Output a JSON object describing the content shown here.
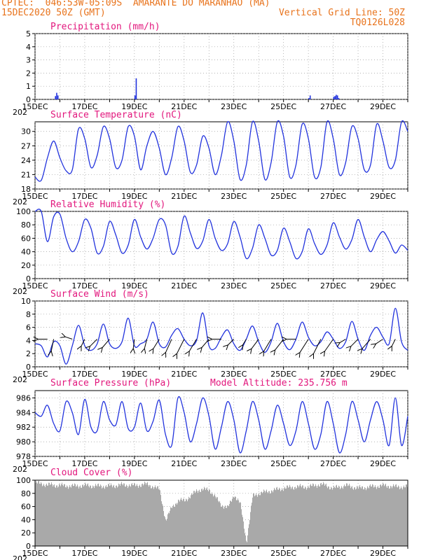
{
  "header": {
    "line1_left": "CPTEC:  046:53W-05:09S  AMARANTE DO MARANHAO (MA)",
    "line2_left": "15DEC2020 50Z (GMT)",
    "line2_right": "Vertical Grid Line: 50Z",
    "line3_right": "TQ0126L028"
  },
  "colors": {
    "line": "#2233dd",
    "bar": "#2233dd",
    "cloud": "#a9a9a9",
    "title": "#e2177d",
    "header": "#e8731c",
    "grid": "#9a9a9a"
  },
  "x_tick_labels": [
    "15DEC",
    "17DEC",
    "19DEC",
    "21DEC",
    "23DEC",
    "25DEC",
    "27DEC",
    "29DEC"
  ],
  "clipped_year_label": "202",
  "chart_data": [
    {
      "type": "bar",
      "title": "Precipitation (mm/h)",
      "ylim": [
        0,
        5
      ],
      "yticks": [
        0,
        1,
        2,
        3,
        4,
        5
      ],
      "x_unit": "day offset from 15DEC",
      "x": [
        0.8,
        0.85,
        0.9,
        4.0,
        4.05,
        11.0,
        11.05,
        12.0,
        12.05,
        12.1,
        12.15,
        12.2
      ],
      "values": [
        0.25,
        0.5,
        0.3,
        0.3,
        1.6,
        0.1,
        0.3,
        0.2,
        0.25,
        0.35,
        0.3,
        0.1
      ]
    },
    {
      "type": "line",
      "title": "Surface Temperature (nC)",
      "ylim": [
        18,
        32
      ],
      "yticks": [
        18,
        21,
        24,
        27,
        30
      ],
      "x": [
        0,
        0.25,
        0.5,
        0.75,
        1.0,
        1.25,
        1.5,
        1.75,
        2.0,
        2.25,
        2.5,
        2.75,
        3.0,
        3.25,
        3.5,
        3.75,
        4.0,
        4.25,
        4.5,
        4.75,
        5.0,
        5.25,
        5.5,
        5.75,
        6.0,
        6.25,
        6.5,
        6.75,
        7.0,
        7.25,
        7.5,
        7.75,
        8.0,
        8.25,
        8.5,
        8.75,
        9.0,
        9.25,
        9.5,
        9.75,
        10.0,
        10.25,
        10.5,
        10.75,
        11.0,
        11.25,
        11.5,
        11.75,
        12.0,
        12.25,
        12.5,
        12.75,
        13.0,
        13.25,
        13.5,
        13.75,
        14.0,
        14.25,
        14.5,
        14.75,
        15.0
      ],
      "values": [
        20.5,
        19.8,
        24.5,
        28,
        24.5,
        21.8,
        22,
        30.5,
        28.5,
        22.5,
        25,
        31,
        28.5,
        22.5,
        24,
        31,
        29,
        22,
        27,
        30,
        26.5,
        21,
        24.5,
        31,
        28,
        21.5,
        23,
        29,
        26.5,
        21,
        25,
        32,
        28,
        20,
        23,
        32,
        28,
        20,
        23.5,
        32,
        29,
        20.5,
        23,
        31.5,
        28.5,
        20.5,
        22.5,
        32,
        28.5,
        21,
        23.5,
        31,
        28.5,
        22,
        23,
        31.5,
        28,
        22.5,
        24,
        32,
        30
      ]
    },
    {
      "type": "line",
      "title": "Relative Humidity (%)",
      "ylim": [
        0,
        100
      ],
      "yticks": [
        0,
        20,
        40,
        60,
        80,
        100
      ],
      "x": [
        0,
        0.25,
        0.5,
        0.75,
        1.0,
        1.25,
        1.5,
        1.75,
        2.0,
        2.25,
        2.5,
        2.75,
        3.0,
        3.25,
        3.5,
        3.75,
        4.0,
        4.25,
        4.5,
        4.75,
        5.0,
        5.25,
        5.5,
        5.75,
        6.0,
        6.25,
        6.5,
        6.75,
        7.0,
        7.25,
        7.5,
        7.75,
        8.0,
        8.25,
        8.5,
        8.75,
        9.0,
        9.25,
        9.5,
        9.75,
        10.0,
        10.25,
        10.5,
        10.75,
        11.0,
        11.25,
        11.5,
        11.75,
        12.0,
        12.25,
        12.5,
        12.75,
        13.0,
        13.25,
        13.5,
        13.75,
        14.0,
        14.25,
        14.5,
        14.75,
        15.0
      ],
      "values": [
        100,
        100,
        55,
        92,
        96,
        60,
        40,
        55,
        88,
        75,
        38,
        48,
        85,
        65,
        38,
        50,
        88,
        62,
        44,
        60,
        88,
        80,
        38,
        48,
        93,
        68,
        45,
        56,
        88,
        60,
        42,
        52,
        85,
        62,
        30,
        45,
        80,
        60,
        35,
        42,
        75,
        55,
        30,
        40,
        74,
        52,
        36,
        50,
        83,
        62,
        44,
        58,
        88,
        62,
        40,
        58,
        70,
        56,
        38,
        50,
        42
      ]
    },
    {
      "type": "line",
      "title": "Surface Wind (m/s)",
      "ylim": [
        0,
        10
      ],
      "yticks": [
        0,
        2,
        4,
        6,
        8,
        10
      ],
      "x": [
        0,
        0.25,
        0.5,
        0.75,
        1.0,
        1.25,
        1.5,
        1.75,
        2.0,
        2.25,
        2.5,
        2.75,
        3.0,
        3.25,
        3.5,
        3.75,
        4.0,
        4.25,
        4.5,
        4.75,
        5.0,
        5.25,
        5.5,
        5.75,
        6.0,
        6.25,
        6.5,
        6.75,
        7.0,
        7.25,
        7.5,
        7.75,
        8.0,
        8.25,
        8.5,
        8.75,
        9.0,
        9.25,
        9.5,
        9.75,
        10.0,
        10.25,
        10.5,
        10.75,
        11.0,
        11.25,
        11.5,
        11.75,
        12.0,
        12.25,
        12.5,
        12.75,
        13.0,
        13.25,
        13.5,
        13.75,
        14.0,
        14.25,
        14.5,
        14.75,
        15.0
      ],
      "values": [
        3.5,
        3.2,
        1.5,
        3.8,
        3.2,
        0.4,
        3.2,
        6.3,
        3.2,
        2.5,
        3.5,
        6.5,
        3.5,
        2.8,
        3.8,
        7.4,
        3.2,
        3.5,
        4.2,
        6.8,
        3.5,
        3,
        4.8,
        5.8,
        4.2,
        3.2,
        4,
        8.2,
        3.2,
        2.8,
        4.5,
        5.6,
        3.5,
        2.5,
        4.2,
        6.2,
        3.8,
        2.2,
        3.8,
        6.6,
        3.8,
        2.6,
        4.2,
        6.8,
        4.5,
        3.2,
        3.8,
        5.3,
        4.2,
        2.8,
        3.8,
        6.9,
        4.2,
        2.5,
        4.8,
        6.0,
        4.5,
        3.5,
        8.9,
        3.8,
        2.5
      ],
      "vectors": [
        {
          "x": 0.5,
          "dx": 0.8,
          "dy": 0
        },
        {
          "x": 0.75,
          "dx": 0.2,
          "dy": -1
        },
        {
          "x": 1.5,
          "dx": 0.6,
          "dy": 0.2
        },
        {
          "x": 2.0,
          "dx": 0.3,
          "dy": -0.6
        },
        {
          "x": 2.5,
          "dx": 0.6,
          "dy": -0.6
        },
        {
          "x": 3.0,
          "dx": 0.6,
          "dy": -0.7
        },
        {
          "x": 4.0,
          "dx": 0.1,
          "dy": -0.8
        },
        {
          "x": 4.5,
          "dx": 0.2,
          "dy": -0.8
        },
        {
          "x": 5.0,
          "dx": 0.5,
          "dy": -0.8
        },
        {
          "x": 5.5,
          "dx": 0.5,
          "dy": -1.1
        },
        {
          "x": 6.0,
          "dx": 0.6,
          "dy": -1.2
        },
        {
          "x": 6.5,
          "dx": 0.6,
          "dy": -1.0
        },
        {
          "x": 7.0,
          "dx": 0.6,
          "dy": -0.7
        },
        {
          "x": 7.5,
          "dx": 0.8,
          "dy": 0
        },
        {
          "x": 8.0,
          "dx": 0.5,
          "dy": -0.5
        },
        {
          "x": 8.5,
          "dx": 0.3,
          "dy": -0.5
        },
        {
          "x": 9.0,
          "dx": 0.6,
          "dy": -0.8
        },
        {
          "x": 9.5,
          "dx": 0.6,
          "dy": -1.0
        },
        {
          "x": 10.0,
          "dx": 0.7,
          "dy": -0.9
        },
        {
          "x": 10.5,
          "dx": 0.8,
          "dy": 0
        },
        {
          "x": 11.0,
          "dx": 0.7,
          "dy": -1.1
        },
        {
          "x": 11.5,
          "dx": 0.6,
          "dy": -1.2
        },
        {
          "x": 12.0,
          "dx": 0.7,
          "dy": -1.0
        },
        {
          "x": 12.5,
          "dx": 0.5,
          "dy": -0.3
        },
        {
          "x": 13.0,
          "dx": 0.6,
          "dy": -0.6
        },
        {
          "x": 13.5,
          "dx": 0.7,
          "dy": -0.8
        },
        {
          "x": 14.0,
          "dx": 0.6,
          "dy": -0.4
        },
        {
          "x": 14.5,
          "dx": 0.3,
          "dy": -0.6
        }
      ]
    },
    {
      "type": "line",
      "title": "Surface Pressure (hPa)",
      "annotation": "Model Altitude: 235.756 m",
      "ylim": [
        978,
        987
      ],
      "yticks": [
        978,
        980,
        982,
        984,
        986
      ],
      "x": [
        0,
        0.25,
        0.5,
        0.75,
        1.0,
        1.25,
        1.5,
        1.75,
        2.0,
        2.25,
        2.5,
        2.75,
        3.0,
        3.25,
        3.5,
        3.75,
        4.0,
        4.25,
        4.5,
        4.75,
        5.0,
        5.25,
        5.5,
        5.75,
        6.0,
        6.25,
        6.5,
        6.75,
        7.0,
        7.25,
        7.5,
        7.75,
        8.0,
        8.25,
        8.5,
        8.75,
        9.0,
        9.25,
        9.5,
        9.75,
        10.0,
        10.25,
        10.5,
        10.75,
        11.0,
        11.25,
        11.5,
        11.75,
        12.0,
        12.25,
        12.5,
        12.75,
        13.0,
        13.25,
        13.5,
        13.75,
        14.0,
        14.25,
        14.5,
        14.75,
        15.0
      ],
      "values": [
        984,
        983.5,
        985,
        982.5,
        981.5,
        985.5,
        984,
        981,
        985.8,
        982,
        981.5,
        985.5,
        983,
        982.3,
        985.5,
        981.8,
        982,
        985.3,
        981.5,
        982.8,
        985.7,
        981,
        979.5,
        986,
        984,
        980,
        982.5,
        986,
        983.5,
        979,
        982,
        985.5,
        983,
        978.5,
        981.5,
        985.5,
        983,
        979,
        981.5,
        985,
        982.5,
        979.5,
        981.5,
        985.5,
        982.5,
        979,
        981,
        985.5,
        982.5,
        978.5,
        981,
        985.5,
        983,
        980,
        983,
        985.5,
        983,
        979.5,
        986,
        979.5,
        983.5
      ]
    },
    {
      "type": "bar",
      "title": "Cloud Cover (%)",
      "ylim": [
        0,
        100
      ],
      "yticks": [
        0,
        20,
        40,
        60,
        80,
        100
      ],
      "x": [
        0,
        0.5,
        1.0,
        1.5,
        2.0,
        2.5,
        3.0,
        3.5,
        4.0,
        4.5,
        5.0,
        5.25,
        5.5,
        5.75,
        6.0,
        6.25,
        6.5,
        7.0,
        7.5,
        7.75,
        8.0,
        8.25,
        8.5,
        8.75,
        9.0,
        9.5,
        10.0,
        10.5,
        11.0,
        11.5,
        12.0,
        12.5,
        13.0,
        13.5,
        14.0,
        14.5,
        15.0
      ],
      "values": [
        96,
        93,
        92,
        91,
        92,
        91,
        91,
        93,
        92,
        94,
        86,
        38,
        60,
        68,
        70,
        75,
        85,
        86,
        62,
        58,
        78,
        64,
        6,
        76,
        80,
        84,
        88,
        90,
        90,
        94,
        88,
        92,
        88,
        90,
        92,
        90,
        90
      ]
    }
  ]
}
